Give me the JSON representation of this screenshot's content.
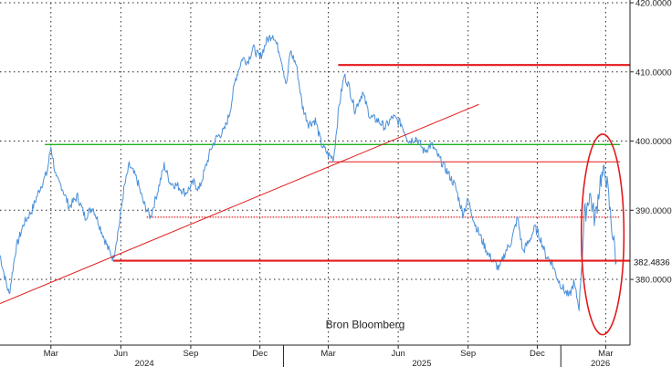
{
  "chart_data": {
    "type": "line",
    "title": "",
    "xlabel": "",
    "ylabel": "",
    "source": "Bron Bloomberg",
    "y_axis": {
      "position": "right",
      "ylim": [
        370.5,
        420
      ],
      "ticks": [
        380,
        390,
        400,
        410,
        420
      ],
      "tick_labels": [
        "380.0000",
        "390.0000",
        "400.0000",
        "410.0000",
        "420.0000"
      ]
    },
    "x_axis": {
      "range": [
        "2023-12-25",
        "2026-04-02"
      ],
      "month_ticks": [
        {
          "date": "2024-03-01",
          "label": "Mar"
        },
        {
          "date": "2024-06-01",
          "label": "Jun"
        },
        {
          "date": "2024-09-01",
          "label": "Sep"
        },
        {
          "date": "2024-12-01",
          "label": "Dec"
        },
        {
          "date": "2025-03-01",
          "label": "Mar"
        },
        {
          "date": "2025-06-01",
          "label": "Jun"
        },
        {
          "date": "2025-09-01",
          "label": "Sep"
        },
        {
          "date": "2025-12-01",
          "label": "Dec"
        },
        {
          "date": "2026-03-01",
          "label": "Mar"
        }
      ],
      "year_labels": [
        {
          "label": "2024",
          "date": "2024-07-02"
        },
        {
          "label": "2025",
          "date": "2025-07-02"
        },
        {
          "label": "2026",
          "date": "2026-02-22"
        }
      ],
      "year_dividers": [
        "2025-01-01",
        "2026-01-01"
      ]
    },
    "grid": true,
    "last_value_label": "382.4836",
    "series": [
      {
        "color": "#4a90d9",
        "points": [
          [
            "2023-12-25",
            383.5
          ],
          [
            "2024-01-01",
            380.0
          ],
          [
            "2024-01-06",
            377.8
          ],
          [
            "2024-01-15",
            384.5
          ],
          [
            "2024-01-25",
            388.0
          ],
          [
            "2024-02-05",
            390.0
          ],
          [
            "2024-02-15",
            393.0
          ],
          [
            "2024-02-25",
            395.5
          ],
          [
            "2024-03-01",
            399.2
          ],
          [
            "2024-03-08",
            394.5
          ],
          [
            "2024-03-15",
            393.5
          ],
          [
            "2024-03-25",
            390.5
          ],
          [
            "2024-04-05",
            392.0
          ],
          [
            "2024-04-15",
            389.0
          ],
          [
            "2024-04-25",
            390.5
          ],
          [
            "2024-05-05",
            387.5
          ],
          [
            "2024-05-15",
            384.5
          ],
          [
            "2024-05-22",
            383.0
          ],
          [
            "2024-05-30",
            388.0
          ],
          [
            "2024-06-05",
            393.0
          ],
          [
            "2024-06-12",
            396.5
          ],
          [
            "2024-06-22",
            394.5
          ],
          [
            "2024-07-01",
            391.0
          ],
          [
            "2024-07-10",
            389.0
          ],
          [
            "2024-07-20",
            393.0
          ],
          [
            "2024-07-28",
            396.5
          ],
          [
            "2024-08-05",
            394.0
          ],
          [
            "2024-08-15",
            393.5
          ],
          [
            "2024-08-25",
            392.5
          ],
          [
            "2024-09-05",
            394.0
          ],
          [
            "2024-09-12",
            393.0
          ],
          [
            "2024-09-20",
            396.0
          ],
          [
            "2024-09-28",
            399.0
          ],
          [
            "2024-10-05",
            400.5
          ],
          [
            "2024-10-15",
            401.5
          ],
          [
            "2024-10-22",
            404.0
          ],
          [
            "2024-10-30",
            409.0
          ],
          [
            "2024-11-08",
            412.0
          ],
          [
            "2024-11-15",
            411.5
          ],
          [
            "2024-11-22",
            413.5
          ],
          [
            "2024-12-01",
            412.0
          ],
          [
            "2024-12-10",
            414.5
          ],
          [
            "2024-12-18",
            415.5
          ],
          [
            "2024-12-28",
            412.5
          ],
          [
            "2025-01-05",
            408.0
          ],
          [
            "2025-01-10",
            413.0
          ],
          [
            "2025-01-18",
            411.0
          ],
          [
            "2025-01-26",
            405.0
          ],
          [
            "2025-02-03",
            402.5
          ],
          [
            "2025-02-12",
            403.0
          ],
          [
            "2025-02-20",
            399.5
          ],
          [
            "2025-03-01",
            398.0
          ],
          [
            "2025-03-08",
            397.5
          ],
          [
            "2025-03-15",
            405.0
          ],
          [
            "2025-03-22",
            409.5
          ],
          [
            "2025-03-28",
            408.0
          ],
          [
            "2025-04-05",
            404.5
          ],
          [
            "2025-04-15",
            407.0
          ],
          [
            "2025-04-25",
            403.5
          ],
          [
            "2025-05-05",
            403.0
          ],
          [
            "2025-05-15",
            402.0
          ],
          [
            "2025-05-25",
            403.5
          ],
          [
            "2025-06-05",
            402.5
          ],
          [
            "2025-06-15",
            400.0
          ],
          [
            "2025-06-25",
            400.5
          ],
          [
            "2025-07-05",
            398.5
          ],
          [
            "2025-07-15",
            399.5
          ],
          [
            "2025-07-25",
            397.5
          ],
          [
            "2025-08-05",
            395.5
          ],
          [
            "2025-08-15",
            393.5
          ],
          [
            "2025-08-25",
            389.5
          ],
          [
            "2025-09-01",
            391.5
          ],
          [
            "2025-09-10",
            388.0
          ],
          [
            "2025-09-20",
            385.5
          ],
          [
            "2025-09-28",
            383.5
          ],
          [
            "2025-10-05",
            382.5
          ],
          [
            "2025-10-12",
            381.5
          ],
          [
            "2025-10-20",
            384.0
          ],
          [
            "2025-10-28",
            385.5
          ],
          [
            "2025-11-05",
            389.0
          ],
          [
            "2025-11-12",
            384.0
          ],
          [
            "2025-11-20",
            385.5
          ],
          [
            "2025-11-28",
            387.5
          ],
          [
            "2025-12-05",
            386.0
          ],
          [
            "2025-12-12",
            383.5
          ],
          [
            "2025-12-20",
            382.5
          ],
          [
            "2025-12-28",
            380.0
          ],
          [
            "2026-01-05",
            378.5
          ],
          [
            "2026-01-12",
            377.5
          ],
          [
            "2026-01-18",
            379.5
          ],
          [
            "2026-01-25",
            376.0
          ],
          [
            "2026-02-01",
            389.0
          ],
          [
            "2026-02-08",
            392.5
          ],
          [
            "2026-02-15",
            388.5
          ],
          [
            "2026-02-22",
            394.5
          ],
          [
            "2026-03-01",
            395.5
          ],
          [
            "2026-03-08",
            388.5
          ],
          [
            "2026-03-15",
            382.5
          ]
        ]
      }
    ],
    "annotations": {
      "resistance_410": {
        "value": 411.0,
        "from": "2025-03-14",
        "to": "2026-04-02",
        "color": "#e31a1c"
      },
      "green_400": {
        "value": 399.5,
        "from": "2024-02-22",
        "to": "2026-03-20",
        "color": "#22b022"
      },
      "thin_red_397": {
        "value": 397.0,
        "from": "2025-03-01",
        "to": "2026-03-20",
        "color": "#e31a1c"
      },
      "dotted_389": {
        "value": 389.0,
        "from": "2024-07-05",
        "to": "2026-03-20",
        "color": "#e31a1c"
      },
      "support_382": {
        "value": 382.7,
        "from": "2024-05-22",
        "to": "2026-04-02",
        "color": "#e31a1c"
      },
      "trendline": {
        "from": [
          "2023-12-25",
          376.5
        ],
        "to": [
          "2025-09-15",
          405.3
        ],
        "color": "#e31a1c"
      },
      "ellipse": {
        "center": [
          "2026-02-25",
          386.5
        ],
        "width_days": 56,
        "height_value": 29,
        "color": "#e31a1c"
      }
    }
  }
}
